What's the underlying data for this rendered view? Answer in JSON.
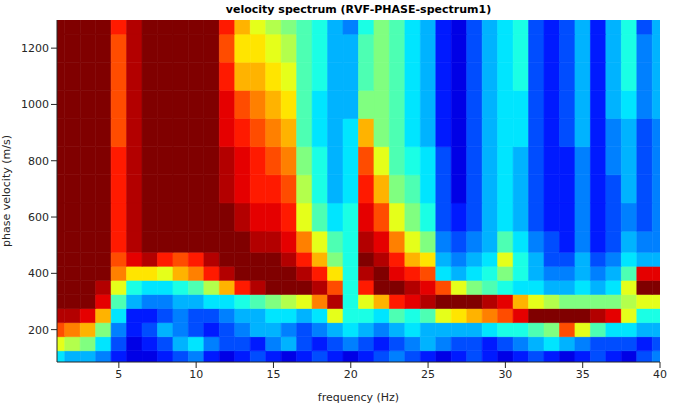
{
  "chart_data": {
    "type": "heatmap",
    "title": "velocity spectrum (RVF-PHASE-spectrum1)",
    "x_label": "frequency (Hz)",
    "y_label": "phase velocity (m/s)",
    "xlim": [
      1,
      40
    ],
    "ylim": [
      85,
      1300
    ],
    "xticks": [
      5,
      10,
      15,
      20,
      25,
      30,
      35,
      40
    ],
    "yticks": [
      200,
      400,
      600,
      800,
      1000,
      1200
    ],
    "zlim": [
      0,
      1
    ],
    "grid": false,
    "x": [
      1,
      2,
      3,
      4,
      5,
      6,
      7,
      8,
      9,
      10,
      11,
      12,
      13,
      14,
      15,
      16,
      17,
      18,
      19,
      20,
      21,
      22,
      23,
      24,
      25,
      26,
      27,
      28,
      29,
      30,
      31,
      32,
      33,
      34,
      35,
      36,
      37,
      38,
      39,
      40
    ],
    "y": [
      100,
      150,
      200,
      250,
      300,
      350,
      400,
      450,
      500,
      600,
      700,
      800,
      900,
      1000,
      1100,
      1200,
      1300
    ],
    "z": [
      [
        0.35,
        0.3,
        0.3,
        0.25,
        0.15,
        0.1,
        0.1,
        0.15,
        0.2,
        0.25,
        0.15,
        0.1,
        0.15,
        0.2,
        0.15,
        0.1,
        0.15,
        0.2,
        0.15,
        0.1,
        0.15,
        0.2,
        0.25,
        0.2,
        0.15,
        0.1,
        0.15,
        0.2,
        0.15,
        0.1,
        0.15,
        0.2,
        0.15,
        0.1,
        0.15,
        0.2,
        0.15,
        0.1,
        0.2,
        0.25
      ],
      [
        0.6,
        0.55,
        0.5,
        0.35,
        0.2,
        0.1,
        0.15,
        0.2,
        0.3,
        0.35,
        0.25,
        0.2,
        0.2,
        0.15,
        0.25,
        0.3,
        0.2,
        0.15,
        0.2,
        0.25,
        0.2,
        0.15,
        0.2,
        0.25,
        0.3,
        0.25,
        0.2,
        0.2,
        0.15,
        0.2,
        0.25,
        0.3,
        0.35,
        0.3,
        0.25,
        0.2,
        0.2,
        0.2,
        0.15,
        0.2
      ],
      [
        0.8,
        0.75,
        0.7,
        0.5,
        0.25,
        0.15,
        0.2,
        0.3,
        0.25,
        0.2,
        0.15,
        0.2,
        0.25,
        0.3,
        0.3,
        0.25,
        0.2,
        0.25,
        0.3,
        0.35,
        0.3,
        0.25,
        0.3,
        0.35,
        0.3,
        0.3,
        0.3,
        0.3,
        0.35,
        0.4,
        0.4,
        0.45,
        0.5,
        0.8,
        0.6,
        0.45,
        0.35,
        0.35,
        0.3,
        0.3
      ],
      [
        0.95,
        0.95,
        0.9,
        0.7,
        0.35,
        0.15,
        0.15,
        0.2,
        0.25,
        0.2,
        0.2,
        0.25,
        0.3,
        0.3,
        0.35,
        0.35,
        0.3,
        0.35,
        0.6,
        0.4,
        0.4,
        0.35,
        0.45,
        0.4,
        0.45,
        0.6,
        0.65,
        0.7,
        0.75,
        0.8,
        0.9,
        1,
        1,
        1,
        1,
        0.95,
        0.9,
        0.6,
        0.4,
        0.4
      ],
      [
        1,
        1,
        1,
        0.9,
        0.45,
        0.3,
        0.25,
        0.25,
        0.3,
        0.3,
        0.35,
        0.35,
        0.4,
        0.45,
        0.5,
        0.55,
        0.6,
        0.75,
        0.95,
        0.4,
        0.6,
        0.7,
        0.85,
        0.9,
        0.95,
        1,
        1,
        1,
        0.95,
        0.9,
        0.7,
        0.6,
        0.55,
        0.5,
        0.5,
        0.5,
        0.5,
        0.55,
        0.6,
        0.6
      ],
      [
        1,
        1,
        1,
        0.95,
        0.6,
        0.4,
        0.35,
        0.35,
        0.4,
        0.45,
        0.55,
        0.7,
        0.85,
        0.95,
        1,
        1,
        1,
        0.95,
        0.8,
        0.4,
        0.85,
        1,
        1,
        0.95,
        0.9,
        0.8,
        0.6,
        0.5,
        0.45,
        0.4,
        0.35,
        0.35,
        0.3,
        0.3,
        0.35,
        0.3,
        0.35,
        0.6,
        1,
        1
      ],
      [
        1,
        1,
        1,
        1,
        0.75,
        0.65,
        0.65,
        0.6,
        0.7,
        0.75,
        0.85,
        0.95,
        1,
        1,
        1,
        1,
        0.95,
        0.85,
        0.65,
        0.4,
        0.95,
        1,
        0.9,
        0.85,
        0.8,
        0.35,
        0.3,
        0.35,
        0.4,
        0.5,
        0.4,
        0.3,
        0.25,
        0.25,
        0.3,
        0.25,
        0.3,
        0.45,
        0.9,
        0.9
      ],
      [
        1,
        1,
        1,
        1,
        0.8,
        0.9,
        0.95,
        0.85,
        0.8,
        0.85,
        0.95,
        1,
        1,
        1,
        1,
        0.95,
        0.85,
        0.7,
        0.5,
        0.4,
        1,
        0.95,
        0.85,
        0.7,
        0.65,
        0.3,
        0.25,
        0.3,
        0.35,
        0.6,
        0.4,
        0.3,
        0.2,
        0.2,
        0.3,
        0.2,
        0.25,
        0.35,
        0.3,
        0.3
      ],
      [
        1,
        1,
        1,
        1,
        0.85,
        0.95,
        1,
        1,
        1,
        1,
        1,
        1,
        1,
        0.95,
        0.95,
        0.9,
        0.75,
        0.6,
        0.45,
        0.4,
        0.95,
        0.9,
        0.75,
        0.6,
        0.5,
        0.25,
        0.2,
        0.25,
        0.3,
        0.45,
        0.35,
        0.25,
        0.2,
        0.15,
        0.25,
        0.15,
        0.2,
        0.3,
        0.25,
        0.25
      ],
      [
        1,
        1,
        1,
        1,
        0.85,
        0.95,
        1,
        1,
        1,
        1,
        1,
        1,
        0.95,
        0.9,
        0.9,
        0.85,
        0.6,
        0.45,
        0.35,
        0.4,
        0.9,
        0.8,
        0.6,
        0.5,
        0.4,
        0.2,
        0.15,
        0.2,
        0.3,
        0.35,
        0.3,
        0.2,
        0.15,
        0.15,
        0.25,
        0.15,
        0.2,
        0.25,
        0.2,
        0.25
      ],
      [
        1,
        1,
        1,
        1,
        0.85,
        0.95,
        1,
        1,
        1,
        1,
        1,
        0.95,
        0.9,
        0.85,
        0.85,
        0.8,
        0.55,
        0.4,
        0.3,
        0.35,
        0.85,
        0.7,
        0.5,
        0.45,
        0.35,
        0.2,
        0.1,
        0.2,
        0.3,
        0.35,
        0.3,
        0.2,
        0.15,
        0.15,
        0.25,
        0.15,
        0.2,
        0.3,
        0.2,
        0.25
      ],
      [
        1,
        1,
        1,
        1,
        0.85,
        0.95,
        1,
        1,
        1,
        1,
        1,
        0.95,
        0.9,
        0.85,
        0.8,
        0.75,
        0.5,
        0.4,
        0.3,
        0.35,
        0.8,
        0.6,
        0.45,
        0.4,
        0.35,
        0.2,
        0.1,
        0.2,
        0.3,
        0.35,
        0.3,
        0.2,
        0.15,
        0.15,
        0.25,
        0.15,
        0.25,
        0.3,
        0.2,
        0.25
      ],
      [
        1,
        1,
        1,
        1,
        0.8,
        0.95,
        1,
        1,
        1,
        1,
        1,
        0.9,
        0.85,
        0.8,
        0.75,
        0.7,
        0.45,
        0.35,
        0.3,
        0.35,
        0.7,
        0.5,
        0.45,
        0.35,
        0.3,
        0.15,
        0.1,
        0.2,
        0.3,
        0.35,
        0.35,
        0.2,
        0.15,
        0.2,
        0.3,
        0.15,
        0.25,
        0.3,
        0.2,
        0.25
      ],
      [
        1,
        1,
        1,
        1,
        0.8,
        0.95,
        1,
        1,
        1,
        1,
        1,
        0.9,
        0.8,
        0.75,
        0.7,
        0.65,
        0.45,
        0.35,
        0.3,
        0.3,
        0.5,
        0.5,
        0.45,
        0.35,
        0.3,
        0.15,
        0.1,
        0.2,
        0.3,
        0.35,
        0.35,
        0.2,
        0.15,
        0.2,
        0.3,
        0.15,
        0.3,
        0.35,
        0.25,
        0.3
      ],
      [
        1,
        1,
        1,
        1,
        0.8,
        0.95,
        1,
        1,
        1,
        1,
        1,
        0.85,
        0.7,
        0.7,
        0.65,
        0.6,
        0.45,
        0.4,
        0.3,
        0.3,
        0.45,
        0.5,
        0.45,
        0.35,
        0.3,
        0.15,
        0.1,
        0.2,
        0.3,
        0.35,
        0.4,
        0.2,
        0.15,
        0.2,
        0.3,
        0.15,
        0.3,
        0.4,
        0.25,
        0.3
      ],
      [
        1,
        1,
        1,
        1,
        0.8,
        0.95,
        1,
        1,
        1,
        1,
        1,
        0.8,
        0.65,
        0.65,
        0.6,
        0.55,
        0.45,
        0.4,
        0.3,
        0.3,
        0.45,
        0.5,
        0.45,
        0.35,
        0.3,
        0.15,
        0.1,
        0.2,
        0.3,
        0.35,
        0.4,
        0.2,
        0.15,
        0.2,
        0.3,
        0.15,
        0.3,
        0.4,
        0.25,
        0.3
      ],
      [
        1,
        1,
        1,
        1,
        0.85,
        0.95,
        1,
        1,
        1,
        1,
        1,
        0.85,
        0.7,
        0.6,
        0.55,
        0.5,
        0.45,
        0.4,
        0.3,
        0.25,
        0.4,
        0.5,
        0.45,
        0.35,
        0.3,
        0.15,
        0.1,
        0.2,
        0.3,
        0.35,
        0.4,
        0.2,
        0.15,
        0.2,
        0.3,
        0.15,
        0.3,
        0.4,
        0.2,
        0.3
      ]
    ]
  }
}
